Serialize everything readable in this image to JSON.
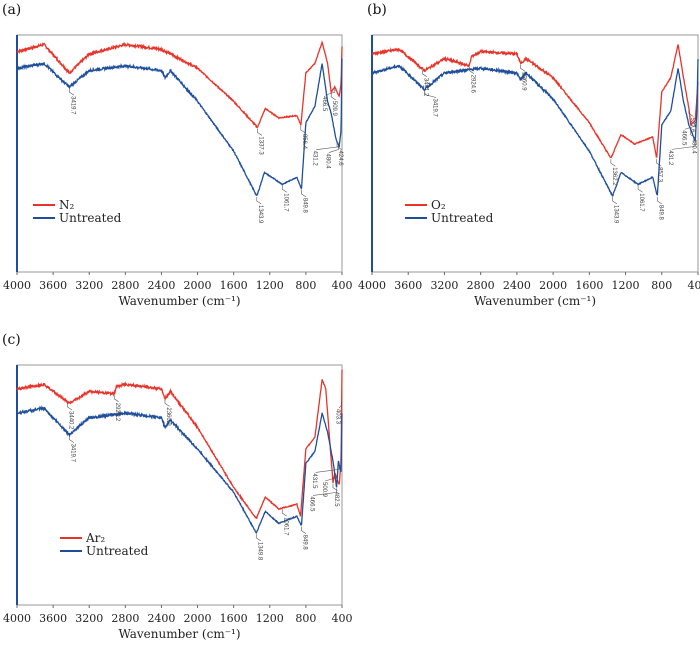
{
  "colors": {
    "treated": "#e8332a",
    "untreated": "#1f4e9c",
    "frame": "#9a9a9a"
  },
  "chart_data": [
    {
      "type": "line",
      "panel_label": "(a)",
      "xlabel": "Wavenumber (cm⁻¹)",
      "xlim": [
        4000,
        400
      ],
      "x_ticks": [
        "4000",
        "3600",
        "3200",
        "2800",
        "2400",
        "2000",
        "1600",
        "1200",
        "800",
        "400"
      ],
      "legend_position": "center-left",
      "series": [
        {
          "name": "N₂",
          "color": "#e8332a",
          "points": [
            [
              4000,
              93
            ],
            [
              3800,
              95
            ],
            [
              3700,
              96
            ],
            [
              3420,
              84
            ],
            [
              3200,
              92
            ],
            [
              2800,
              96
            ],
            [
              2400,
              94
            ],
            [
              2000,
              86
            ],
            [
              1600,
              72
            ],
            [
              1337,
              61
            ],
            [
              1250,
              69
            ],
            [
              1100,
              65
            ],
            [
              900,
              66
            ],
            [
              856,
              62
            ],
            [
              800,
              84
            ],
            [
              700,
              88
            ],
            [
              620,
              97
            ],
            [
              560,
              88
            ],
            [
              520,
              76
            ],
            [
              480,
              78
            ],
            [
              431,
              74
            ],
            [
              410,
              80
            ],
            [
              400,
              95
            ]
          ]
        },
        {
          "name": "Untreated",
          "color": "#1f4e9c",
          "points": [
            [
              4000,
              86
            ],
            [
              3700,
              88
            ],
            [
              3420,
              78
            ],
            [
              3200,
              85
            ],
            [
              2800,
              87
            ],
            [
              2400,
              85
            ],
            [
              2360,
              82
            ],
            [
              2300,
              85
            ],
            [
              2000,
              72
            ],
            [
              1600,
              51
            ],
            [
              1343,
              32
            ],
            [
              1260,
              42
            ],
            [
              1061,
              37
            ],
            [
              900,
              40
            ],
            [
              849,
              35
            ],
            [
              800,
              63
            ],
            [
              700,
              70
            ],
            [
              620,
              88
            ],
            [
              560,
              72
            ],
            [
              520,
              67
            ],
            [
              466,
              56
            ],
            [
              431,
              53
            ],
            [
              410,
              60
            ],
            [
              400,
              90
            ]
          ]
        }
      ],
      "annotations": [
        {
          "text": "3419.7",
          "x": 3419.7,
          "series": 1
        },
        {
          "text": "1337.3",
          "x": 1337.3,
          "series": 0
        },
        {
          "text": "856.4",
          "x": 856.4,
          "series": 0
        },
        {
          "text": "509.9",
          "x": 520,
          "series": 0
        },
        {
          "text": "466.5",
          "x": 480,
          "series": 0
        },
        {
          "text": "424.6",
          "x": 455,
          "series": 1
        },
        {
          "text": "480.4",
          "x": 440,
          "series": 1
        },
        {
          "text": "431.2",
          "x": 425,
          "series": 1
        },
        {
          "text": "1343.9",
          "x": 1343.9,
          "series": 1
        },
        {
          "text": "1061.7",
          "x": 1061.7,
          "series": 1
        },
        {
          "text": "849.8",
          "x": 849.8,
          "series": 1
        }
      ]
    },
    {
      "type": "line",
      "panel_label": "(b)",
      "xlabel": "Wavenumber (cm⁻¹)",
      "xlim": [
        4000,
        400
      ],
      "x_ticks": [
        "4000",
        "3600",
        "3200",
        "2800",
        "2400",
        "2000",
        "1600",
        "1200",
        "800",
        "400"
      ],
      "legend_position": "center-left",
      "series": [
        {
          "name": "O₂",
          "color": "#e8332a",
          "points": [
            [
              4000,
              92
            ],
            [
              3700,
              94
            ],
            [
              3420,
              85
            ],
            [
              3200,
              90
            ],
            [
              2925,
              87
            ],
            [
              2900,
              91
            ],
            [
              2800,
              93
            ],
            [
              2400,
              92
            ],
            [
              2360,
              88
            ],
            [
              2300,
              90
            ],
            [
              2000,
              82
            ],
            [
              1600,
              63
            ],
            [
              1362,
              48
            ],
            [
              1250,
              58
            ],
            [
              1100,
              54
            ],
            [
              900,
              57
            ],
            [
              857,
              48
            ],
            [
              800,
              76
            ],
            [
              700,
              82
            ],
            [
              620,
              96
            ],
            [
              560,
              82
            ],
            [
              500,
              69
            ],
            [
              480,
              62
            ],
            [
              430,
              64
            ],
            [
              410,
              75
            ],
            [
              400,
              80
            ]
          ]
        },
        {
          "name": "Untreated",
          "color": "#1f4e9c",
          "points": [
            [
              4000,
              84
            ],
            [
              3700,
              87
            ],
            [
              3420,
              77
            ],
            [
              3200,
              84
            ],
            [
              2800,
              86
            ],
            [
              2400,
              84
            ],
            [
              2360,
              81
            ],
            [
              2300,
              84
            ],
            [
              2000,
              73
            ],
            [
              1600,
              51
            ],
            [
              1343,
              32
            ],
            [
              1250,
              42
            ],
            [
              1061,
              37
            ],
            [
              900,
              40
            ],
            [
              849,
              32
            ],
            [
              800,
              62
            ],
            [
              700,
              68
            ],
            [
              620,
              86
            ],
            [
              560,
              72
            ],
            [
              500,
              62
            ],
            [
              480,
              60
            ],
            [
              430,
              55
            ],
            [
              410,
              70
            ],
            [
              400,
              90
            ]
          ]
        }
      ],
      "annotations": [
        {
          "text": "3441.2",
          "x": 3441.2,
          "series": 0
        },
        {
          "text": "2924.6",
          "x": 2924.6,
          "series": 0
        },
        {
          "text": "2360.9",
          "x": 2360.9,
          "series": 0
        },
        {
          "text": "3419.7",
          "x": 3419.7,
          "series": 1
        },
        {
          "text": "1362.2",
          "x": 1362.2,
          "series": 0
        },
        {
          "text": "857.3",
          "x": 857.3,
          "series": 0
        },
        {
          "text": "1343.9",
          "x": 1343.9,
          "series": 1
        },
        {
          "text": "1061.7",
          "x": 1061.7,
          "series": 1
        },
        {
          "text": "849.8",
          "x": 849.8,
          "series": 1
        },
        {
          "text": "527.6",
          "x": 500,
          "series": 0
        },
        {
          "text": "480.4",
          "x": 480.4,
          "series": 1
        },
        {
          "text": "466.5",
          "x": 440,
          "series": 0
        },
        {
          "text": "431.2",
          "x": 431.2,
          "series": 1
        }
      ]
    },
    {
      "type": "line",
      "panel_label": "(c)",
      "xlabel": "Wavenumber (cm⁻¹)",
      "xlim": [
        4000,
        400
      ],
      "x_ticks": [
        "4000",
        "3600",
        "3200",
        "2800",
        "2400",
        "2000",
        "1600",
        "1200",
        "800",
        "400"
      ],
      "legend_position": "center-left",
      "series": [
        {
          "name": "Ar₂",
          "color": "#e8332a",
          "points": [
            [
              4000,
              90
            ],
            [
              3700,
              92
            ],
            [
              3420,
              84
            ],
            [
              3200,
              89
            ],
            [
              2923,
              88
            ],
            [
              2900,
              91
            ],
            [
              2800,
              92
            ],
            [
              2400,
              90
            ],
            [
              2360,
              86
            ],
            [
              2300,
              89
            ],
            [
              2000,
              74
            ],
            [
              1600,
              49
            ],
            [
              1349,
              36
            ],
            [
              1250,
              45
            ],
            [
              1100,
              40
            ],
            [
              900,
              42
            ],
            [
              860,
              37
            ],
            [
              800,
              65
            ],
            [
              700,
              70
            ],
            [
              620,
              94
            ],
            [
              580,
              90
            ],
            [
              500,
              51
            ],
            [
              480,
              55
            ],
            [
              431,
              50
            ],
            [
              410,
              60
            ],
            [
              400,
              98
            ]
          ]
        },
        {
          "name": "Untreated",
          "color": "#1f4e9c",
          "points": [
            [
              4000,
              80
            ],
            [
              3700,
              82
            ],
            [
              3420,
              71
            ],
            [
              3200,
              78
            ],
            [
              2800,
              80
            ],
            [
              2400,
              78
            ],
            [
              2360,
              74
            ],
            [
              2300,
              77
            ],
            [
              2000,
              65
            ],
            [
              1600,
              47
            ],
            [
              1349,
              30
            ],
            [
              1250,
              39
            ],
            [
              1100,
              34
            ],
            [
              900,
              37
            ],
            [
              849,
              33
            ],
            [
              800,
              59
            ],
            [
              700,
              64
            ],
            [
              620,
              80
            ],
            [
              560,
              72
            ],
            [
              500,
              60
            ],
            [
              460,
              49
            ],
            [
              440,
              60
            ],
            [
              410,
              55
            ],
            [
              400,
              80
            ]
          ]
        }
      ],
      "annotations": [
        {
          "text": "3440.2",
          "x": 3440.2,
          "series": 0
        },
        {
          "text": "2923.2",
          "x": 2923.2,
          "series": 0
        },
        {
          "text": "2360.9",
          "x": 2360.9,
          "series": 0
        },
        {
          "text": "3419.7",
          "x": 3419.7,
          "series": 1
        },
        {
          "text": "1349.8",
          "x": 1349.8,
          "series": 1
        },
        {
          "text": "1061.7",
          "x": 1061.7,
          "series": 0
        },
        {
          "text": "849.8",
          "x": 849.8,
          "series": 1
        },
        {
          "text": "482.5",
          "x": 500,
          "series": 0
        },
        {
          "text": "500.9",
          "x": 480,
          "series": 0
        },
        {
          "text": "466.5",
          "x": 460,
          "series": 1
        },
        {
          "text": "431.5",
          "x": 431.5,
          "series": 1
        },
        {
          "text": "403.3",
          "x": 403.3,
          "series": 0
        }
      ]
    }
  ]
}
